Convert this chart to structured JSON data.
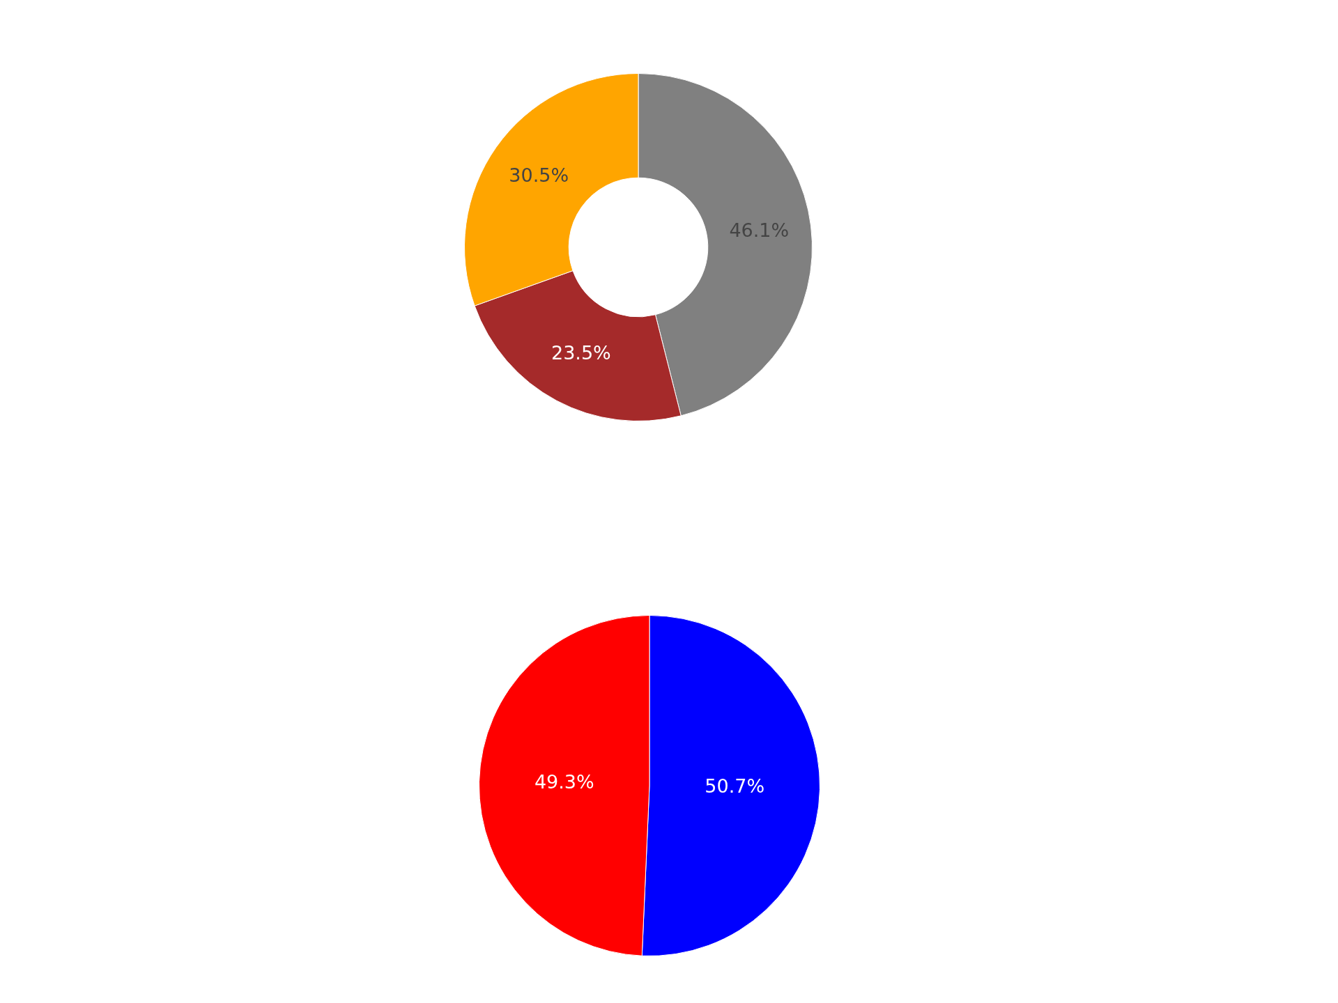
{
  "chart_data": [
    {
      "type": "donut",
      "categories": [
        null,
        null,
        null
      ],
      "values": [
        46.1,
        23.5,
        30.5
      ],
      "colors": [
        "#808080",
        "#a52a2a",
        "#ffa500"
      ],
      "value_labels": [
        "46.1%",
        "23.5%",
        "30.5%"
      ]
    },
    {
      "type": "pie",
      "categories": [
        null,
        null
      ],
      "values": [
        50.7,
        49.3
      ],
      "colors": [
        "#0000ff",
        "#ff0000"
      ],
      "value_labels": [
        "50.7%",
        "49.3%"
      ]
    }
  ]
}
